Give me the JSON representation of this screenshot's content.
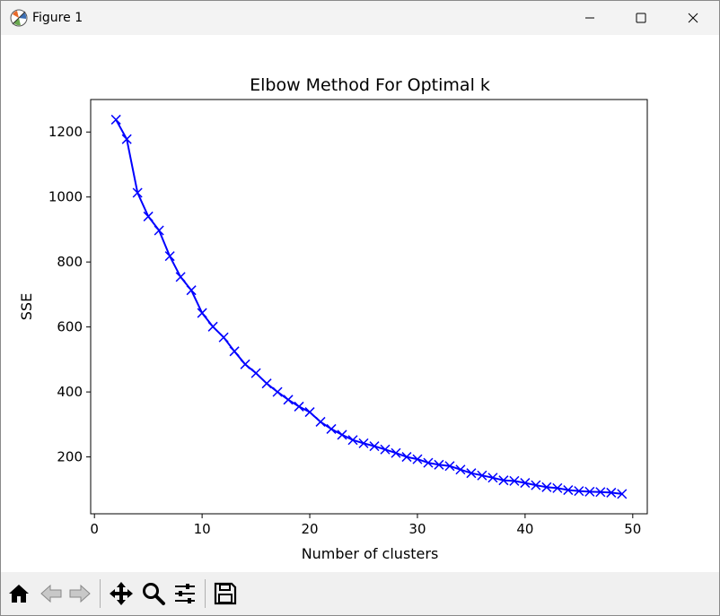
{
  "window": {
    "title": "Figure 1"
  },
  "icons": {
    "app": "matplotlib-icon",
    "minimize": "minimize-icon",
    "maximize": "maximize-icon",
    "close": "close-icon",
    "home": "home-icon",
    "back": "back-arrow-icon",
    "forward": "forward-arrow-icon",
    "pan": "pan-icon",
    "zoom": "zoom-icon",
    "configure": "subplots-config-icon",
    "save": "save-icon"
  },
  "chart_data": {
    "type": "line",
    "title": "Elbow Method For Optimal k",
    "xlabel": "Number of clusters",
    "ylabel": "SSE",
    "xlim": [
      -0.35,
      51.35
    ],
    "ylim": [
      25,
      1300
    ],
    "xticks": [
      0,
      10,
      20,
      30,
      40,
      50
    ],
    "yticks": [
      200,
      400,
      600,
      800,
      1000,
      1200
    ],
    "grid": false,
    "color": "#0000ff",
    "marker": "x",
    "x": [
      2,
      3,
      4,
      5,
      6,
      7,
      8,
      9,
      10,
      11,
      12,
      13,
      14,
      15,
      16,
      17,
      18,
      19,
      20,
      21,
      22,
      23,
      24,
      25,
      26,
      27,
      28,
      29,
      30,
      31,
      32,
      33,
      34,
      35,
      36,
      37,
      38,
      39,
      40,
      41,
      42,
      43,
      44,
      45,
      46,
      47,
      48,
      49
    ],
    "y": [
      1238,
      1178,
      1013,
      940,
      897,
      818,
      754,
      713,
      643,
      601,
      568,
      525,
      485,
      458,
      426,
      400,
      376,
      355,
      338,
      308,
      286,
      268,
      252,
      242,
      233,
      223,
      212,
      200,
      193,
      182,
      176,
      172,
      161,
      150,
      143,
      136,
      128,
      126,
      120,
      113,
      107,
      104,
      98,
      95,
      93,
      92,
      90,
      86
    ]
  }
}
